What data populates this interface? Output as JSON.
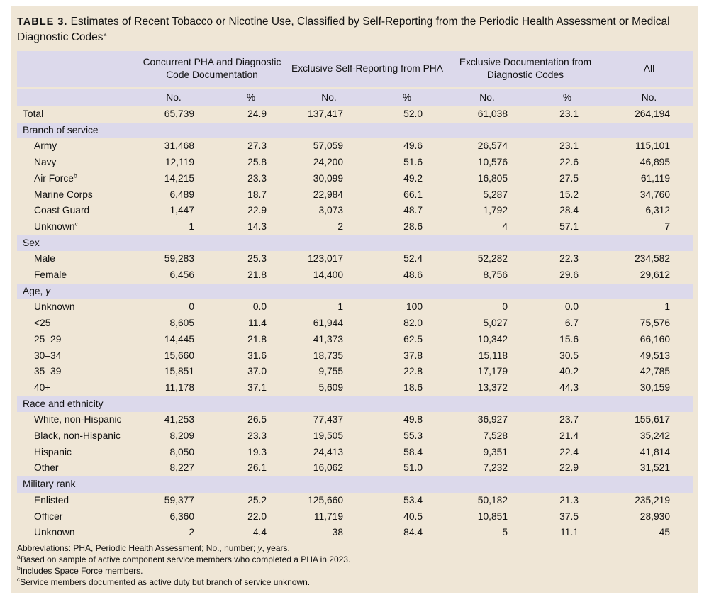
{
  "title": {
    "label": "TABLE 3.",
    "text": " Estimates of Recent Tobacco or Nicotine Use, Classified by Self-Reporting from the Periodic Health Assessment or Medical Diagnostic Codes",
    "sup": "a"
  },
  "header": {
    "group1": "Concurrent PHA and Diagnostic Code Documentation",
    "group2": "Exclusive Self-Reporting from PHA",
    "group3": "Exclusive Documentation from Diagnostic Codes",
    "group4": "All",
    "sub": [
      "No.",
      "%",
      "No.",
      "%",
      "No.",
      "%",
      "No."
    ]
  },
  "rows": [
    {
      "type": "data",
      "label": "Total",
      "values": [
        "65,739",
        "24.9",
        "137,417",
        "52.0",
        "61,038",
        "23.1",
        "264,194"
      ]
    },
    {
      "type": "section",
      "label": "Branch of service"
    },
    {
      "type": "sub",
      "label": "Army",
      "values": [
        "31,468",
        "27.3",
        "57,059",
        "49.6",
        "26,574",
        "23.1",
        "115,101"
      ]
    },
    {
      "type": "sub",
      "label": "Navy",
      "values": [
        "12,119",
        "25.8",
        "24,200",
        "51.6",
        "10,576",
        "22.6",
        "46,895"
      ]
    },
    {
      "type": "sub",
      "label": "Air Force",
      "sup": "b",
      "values": [
        "14,215",
        "23.3",
        "30,099",
        "49.2",
        "16,805",
        "27.5",
        "61,119"
      ]
    },
    {
      "type": "sub",
      "label": "Marine Corps",
      "values": [
        "6,489",
        "18.7",
        "22,984",
        "66.1",
        "5,287",
        "15.2",
        "34,760"
      ]
    },
    {
      "type": "sub",
      "label": "Coast Guard",
      "values": [
        "1,447",
        "22.9",
        "3,073",
        "48.7",
        "1,792",
        "28.4",
        "6,312"
      ]
    },
    {
      "type": "sub",
      "label": "Unknown",
      "sup": "c",
      "values": [
        "1",
        "14.3",
        "2",
        "28.6",
        "4",
        "57.1",
        "7"
      ]
    },
    {
      "type": "section",
      "label": "Sex"
    },
    {
      "type": "sub",
      "label": "Male",
      "values": [
        "59,283",
        "25.3",
        "123,017",
        "52.4",
        "52,282",
        "22.3",
        "234,582"
      ]
    },
    {
      "type": "sub",
      "label": "Female",
      "values": [
        "6,456",
        "21.8",
        "14,400",
        "48.6",
        "8,756",
        "29.6",
        "29,612"
      ]
    },
    {
      "type": "section",
      "label": "Age, ",
      "italic": "y"
    },
    {
      "type": "sub",
      "label": "Unknown",
      "values": [
        "0",
        "0.0",
        "1",
        "100",
        "0",
        "0.0",
        "1"
      ]
    },
    {
      "type": "sub",
      "label": "<25",
      "values": [
        "8,605",
        "11.4",
        "61,944",
        "82.0",
        "5,027",
        "6.7",
        "75,576"
      ]
    },
    {
      "type": "sub",
      "label": "25–29",
      "values": [
        "14,445",
        "21.8",
        "41,373",
        "62.5",
        "10,342",
        "15.6",
        "66,160"
      ]
    },
    {
      "type": "sub",
      "label": "30–34",
      "values": [
        "15,660",
        "31.6",
        "18,735",
        "37.8",
        "15,118",
        "30.5",
        "49,513"
      ]
    },
    {
      "type": "sub",
      "label": "35–39",
      "values": [
        "15,851",
        "37.0",
        "9,755",
        "22.8",
        "17,179",
        "40.2",
        "42,785"
      ]
    },
    {
      "type": "sub",
      "label": "40+",
      "values": [
        "11,178",
        "37.1",
        "5,609",
        "18.6",
        "13,372",
        "44.3",
        "30,159"
      ]
    },
    {
      "type": "section",
      "label": "Race and ethnicity"
    },
    {
      "type": "sub",
      "label": "White, non-Hispanic",
      "values": [
        "41,253",
        "26.5",
        "77,437",
        "49.8",
        "36,927",
        "23.7",
        "155,617"
      ]
    },
    {
      "type": "sub",
      "label": "Black, non-Hispanic",
      "values": [
        "8,209",
        "23.3",
        "19,505",
        "55.3",
        "7,528",
        "21.4",
        "35,242"
      ]
    },
    {
      "type": "sub",
      "label": "Hispanic",
      "values": [
        "8,050",
        "19.3",
        "24,413",
        "58.4",
        "9,351",
        "22.4",
        "41,814"
      ]
    },
    {
      "type": "sub",
      "label": "Other",
      "values": [
        "8,227",
        "26.1",
        "16,062",
        "51.0",
        "7,232",
        "22.9",
        "31,521"
      ]
    },
    {
      "type": "section",
      "label": "Military rank"
    },
    {
      "type": "sub",
      "label": "Enlisted",
      "values": [
        "59,377",
        "25.2",
        "125,660",
        "53.4",
        "50,182",
        "21.3",
        "235,219"
      ]
    },
    {
      "type": "sub",
      "label": "Officer",
      "values": [
        "6,360",
        "22.0",
        "11,719",
        "40.5",
        "10,851",
        "37.5",
        "28,930"
      ]
    },
    {
      "type": "sub",
      "label": "Unknown",
      "values": [
        "2",
        "4.4",
        "38",
        "84.4",
        "5",
        "11.1",
        "45"
      ]
    }
  ],
  "footnotes": {
    "abbrev_pre": "Abbreviations: PHA, Periodic Health Assessment; No., number; ",
    "abbrev_italic": "y",
    "abbrev_post": ", years.",
    "a": {
      "mark": "a",
      "text": "Based on sample of active component service members who completed a PHA in 2023."
    },
    "b": {
      "mark": "b",
      "text": "Includes Space Force members."
    },
    "c": {
      "mark": "c",
      "text": "Service members documented as active duty but branch of service unknown."
    }
  }
}
